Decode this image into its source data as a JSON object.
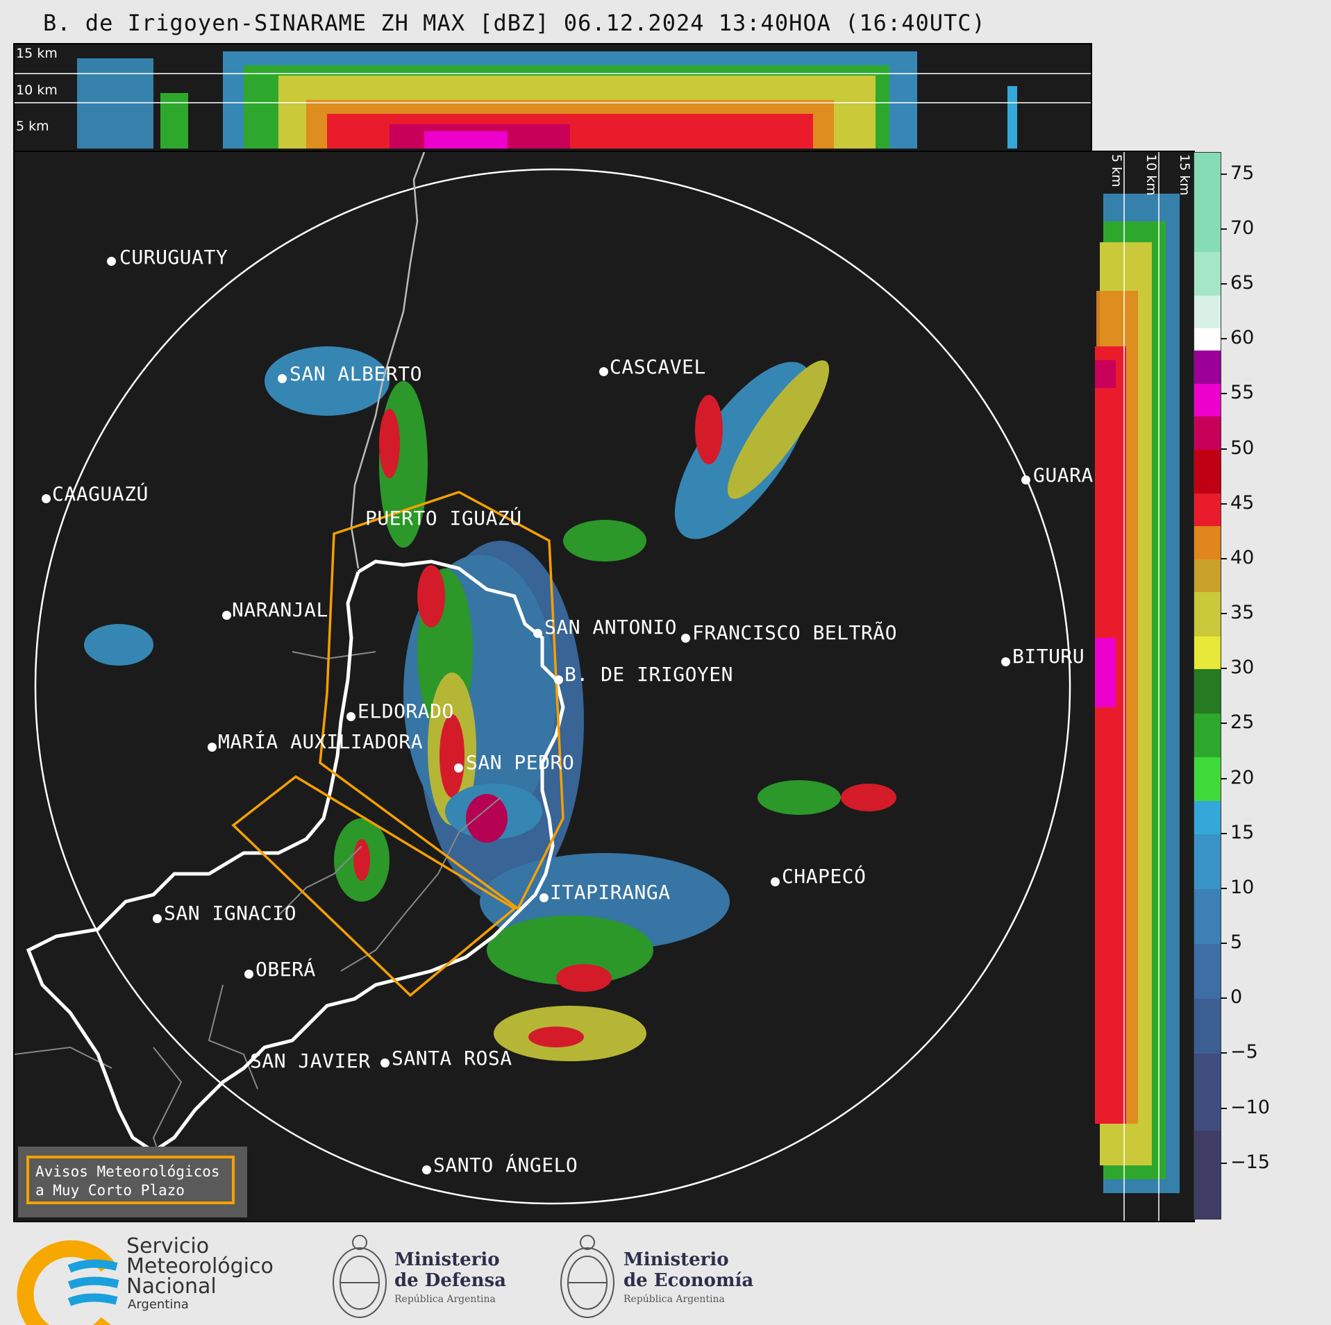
{
  "title": "B. de Irigoyen-SINARAME ZH MAX [dBZ] 06.12.2024 13:40HOA (16:40UTC)",
  "top_panel": {
    "height_labels": [
      "15 km",
      "10 km",
      "5 km"
    ]
  },
  "side_panel": {
    "height_labels": [
      "5 km",
      "10 km",
      "15 km"
    ]
  },
  "colorbar": {
    "unit": "dBZ",
    "ticks": [
      "75",
      "70",
      "65",
      "60",
      "55",
      "50",
      "45",
      "40",
      "35",
      "30",
      "25",
      "20",
      "15",
      "10",
      "5",
      "0",
      "−5",
      "−10",
      "−15"
    ],
    "stops": [
      {
        "from": -20,
        "to": -12,
        "color": "#3f3d66"
      },
      {
        "from": -12,
        "to": -5,
        "color": "#3e4c7e"
      },
      {
        "from": -5,
        "to": 0,
        "color": "#3c5f92"
      },
      {
        "from": 0,
        "to": 5,
        "color": "#3d6ea5"
      },
      {
        "from": 5,
        "to": 10,
        "color": "#3c80b5"
      },
      {
        "from": 10,
        "to": 15,
        "color": "#3a93c6"
      },
      {
        "from": 15,
        "to": 18,
        "color": "#34a8d8"
      },
      {
        "from": 18,
        "to": 22,
        "color": "#3fd93a"
      },
      {
        "from": 22,
        "to": 26,
        "color": "#2ea82c"
      },
      {
        "from": 26,
        "to": 30,
        "color": "#257a22"
      },
      {
        "from": 30,
        "to": 33,
        "color": "#e8e838"
      },
      {
        "from": 33,
        "to": 37,
        "color": "#c9c93a"
      },
      {
        "from": 37,
        "to": 40,
        "color": "#c9a02a"
      },
      {
        "from": 40,
        "to": 43,
        "color": "#e0861c"
      },
      {
        "from": 43,
        "to": 46,
        "color": "#ea1c2c"
      },
      {
        "from": 46,
        "to": 50,
        "color": "#c00012"
      },
      {
        "from": 50,
        "to": 53,
        "color": "#c8005a"
      },
      {
        "from": 53,
        "to": 56,
        "color": "#ee00cc"
      },
      {
        "from": 56,
        "to": 59,
        "color": "#9a0098"
      },
      {
        "from": 59,
        "to": 61,
        "color": "#ffffff"
      },
      {
        "from": 61,
        "to": 64,
        "color": "#d9f0e6"
      },
      {
        "from": 64,
        "to": 68,
        "color": "#a5e6c6"
      },
      {
        "from": 68,
        "to": 77,
        "color": "#86dcb4"
      }
    ]
  },
  "cities": [
    {
      "name": "CURUGUATY"
    },
    {
      "name": "SAN ALBERTO"
    },
    {
      "name": "CASCAVEL"
    },
    {
      "name": "CAAGUAZÚ"
    },
    {
      "name": "GUARA"
    },
    {
      "name": "PUERTO IGUAZÚ"
    },
    {
      "name": "NARANJAL"
    },
    {
      "name": "SAN ANTONIO"
    },
    {
      "name": "FRANCISCO BELTRÃO"
    },
    {
      "name": "BITURU"
    },
    {
      "name": "B. DE IRIGOYEN"
    },
    {
      "name": "ELDORADO"
    },
    {
      "name": "MARÍA AUXILIADORA"
    },
    {
      "name": "SAN PEDRO"
    },
    {
      "name": "CHAPECÓ"
    },
    {
      "name": "ITAPIRANGA"
    },
    {
      "name": "SAN IGNACIO"
    },
    {
      "name": "OBERÁ"
    },
    {
      "name": "SAN JAVIER"
    },
    {
      "name": "SANTA ROSA"
    },
    {
      "name": "SANTO ÁNGELO"
    }
  ],
  "legend": {
    "line1": "Avisos Meteorológicos",
    "line2": "a Muy Corto Plazo",
    "color": "#f5a000"
  },
  "logos": {
    "smn": {
      "line1": "Servicio",
      "line2": "Meteorológico",
      "line3": "Nacional",
      "line4": "Argentina"
    },
    "defensa": {
      "line1": "Ministerio",
      "line2": "de Defensa",
      "sub": "República Argentina"
    },
    "economia": {
      "line1": "Ministerio",
      "line2": "de Economía",
      "sub": "República Argentina"
    }
  }
}
